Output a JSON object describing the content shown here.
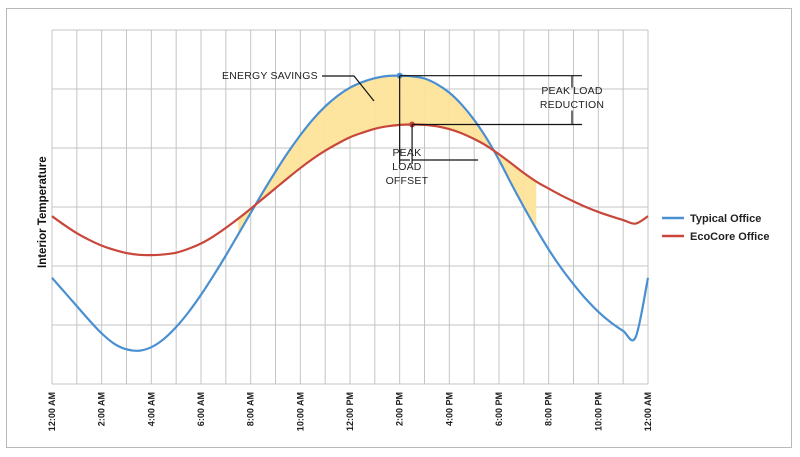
{
  "chart_data": {
    "type": "line",
    "title": "",
    "xlabel": "",
    "ylabel": "Interior Temperature",
    "grid": true,
    "legend_position": "right",
    "x_hours": [
      0,
      0.5,
      1,
      1.5,
      2,
      2.5,
      3,
      3.5,
      4,
      4.5,
      5,
      5.5,
      6,
      6.5,
      7,
      7.5,
      8,
      8.5,
      9,
      9.5,
      10,
      10.5,
      11,
      11.5,
      12,
      12.5,
      13,
      13.5,
      14,
      14.5,
      15,
      15.5,
      16,
      16.5,
      17,
      17.5,
      18,
      18.5,
      19,
      19.5,
      20,
      20.5,
      21,
      21.5,
      22,
      22.5,
      23,
      23.5,
      24
    ],
    "x_ticks": [
      "12:00 AM",
      "2:00 AM",
      "4:00 AM",
      "6:00 AM",
      "8:00 AM",
      "10:00 AM",
      "12:00 PM",
      "2:00 PM",
      "4:00 PM",
      "6:00 PM",
      "8:00 PM",
      "10:00 PM",
      "12:00 AM"
    ],
    "y_range": [
      0,
      1
    ],
    "series": [
      {
        "name": "Typical Office",
        "color": "#4a8fd1",
        "values": [
          0.3,
          0.26,
          0.22,
          0.18,
          0.143,
          0.114,
          0.098,
          0.094,
          0.104,
          0.127,
          0.161,
          0.203,
          0.252,
          0.306,
          0.363,
          0.423,
          0.483,
          0.543,
          0.6,
          0.654,
          0.703,
          0.747,
          0.784,
          0.814,
          0.837,
          0.853,
          0.864,
          0.87,
          0.871,
          0.869,
          0.863,
          0.847,
          0.823,
          0.789,
          0.746,
          0.694,
          0.633,
          0.565,
          0.5,
          0.438,
          0.38,
          0.328,
          0.282,
          0.24,
          0.204,
          0.174,
          0.15,
          0.132,
          0.3
        ]
      },
      {
        "name": "EcoCore Office",
        "color": "#c8463a",
        "values": [
          0.474,
          0.449,
          0.426,
          0.407,
          0.391,
          0.379,
          0.37,
          0.365,
          0.364,
          0.366,
          0.371,
          0.382,
          0.397,
          0.417,
          0.441,
          0.467,
          0.495,
          0.524,
          0.553,
          0.582,
          0.61,
          0.636,
          0.659,
          0.679,
          0.697,
          0.71,
          0.721,
          0.728,
          0.732,
          0.733,
          0.732,
          0.728,
          0.72,
          0.708,
          0.692,
          0.673,
          0.649,
          0.623,
          0.596,
          0.572,
          0.552,
          0.533,
          0.516,
          0.5,
          0.486,
          0.474,
          0.463,
          0.453,
          0.474
        ]
      }
    ],
    "annotations": {
      "energy_savings": "ENERGY SAVINGS",
      "peak_load_reduction": [
        "PEAK LOAD",
        "REDUCTION"
      ],
      "peak_load_offset": [
        "PEAK",
        "LOAD",
        "OFFSET"
      ]
    },
    "fill_between": {
      "color": "#fde49b",
      "from_hour": 7.5,
      "to_hour": 19.7
    }
  }
}
